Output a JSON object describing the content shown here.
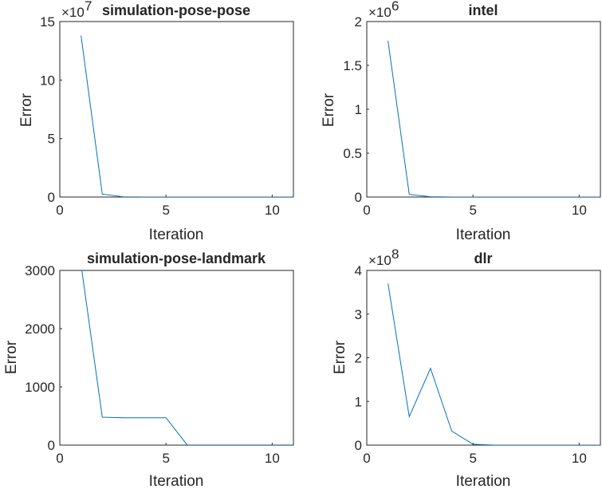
{
  "figure": {
    "background": "#ffffff",
    "line_color": "#0072BD",
    "axis_color": "#262626"
  },
  "chart_data": [
    {
      "type": "line",
      "title": "simulation-pose-pose",
      "xlabel": "Iteration",
      "ylabel": "Error",
      "xlim": [
        0,
        11
      ],
      "ylim": [
        0,
        15
      ],
      "xticks": [
        0,
        5,
        10
      ],
      "yticks": [
        0,
        5,
        10,
        15
      ],
      "ytick_labels": [
        "0",
        "5",
        "10",
        "15"
      ],
      "y_exponent": "7",
      "y_multiplier": 10000000,
      "grid": false,
      "series": [
        {
          "x": [
            1,
            2,
            3,
            4,
            5,
            6,
            7,
            8,
            9,
            10,
            11
          ],
          "values": [
            13.8,
            0.25,
            0.02,
            0,
            0,
            0,
            0,
            0,
            0,
            0,
            0
          ]
        }
      ]
    },
    {
      "type": "line",
      "title": "intel",
      "xlabel": "Iteration",
      "ylabel": "Error",
      "xlim": [
        0,
        11
      ],
      "ylim": [
        0,
        2
      ],
      "xticks": [
        0,
        5,
        10
      ],
      "yticks": [
        0,
        0.5,
        1,
        1.5,
        2
      ],
      "ytick_labels": [
        "0",
        "0.5",
        "1",
        "1.5",
        "2"
      ],
      "y_exponent": "6",
      "y_multiplier": 1000000,
      "grid": false,
      "series": [
        {
          "x": [
            1,
            2,
            3,
            4,
            5,
            6,
            7,
            8,
            9,
            10,
            11
          ],
          "values": [
            1.78,
            0.03,
            0.003,
            0,
            0,
            0,
            0,
            0,
            0,
            0,
            0
          ]
        }
      ]
    },
    {
      "type": "line",
      "title": "simulation-pose-landmark",
      "xlabel": "Iteration",
      "ylabel": "Error",
      "xlim": [
        0,
        11
      ],
      "ylim": [
        0,
        3000
      ],
      "xticks": [
        0,
        5,
        10
      ],
      "yticks": [
        0,
        1000,
        2000,
        3000
      ],
      "ytick_labels": [
        "0",
        "1000",
        "2000",
        "3000"
      ],
      "y_exponent": "",
      "y_multiplier": 1,
      "grid": false,
      "series": [
        {
          "x": [
            1,
            2,
            3,
            4,
            5,
            6,
            7,
            8,
            9,
            10,
            11
          ],
          "values": [
            3100,
            480,
            470,
            470,
            470,
            2,
            1,
            1,
            1,
            1,
            1
          ]
        }
      ]
    },
    {
      "type": "line",
      "title": "dlr",
      "xlabel": "Iteration",
      "ylabel": "Error",
      "xlim": [
        0,
        11
      ],
      "ylim": [
        0,
        4
      ],
      "xticks": [
        0,
        5,
        10
      ],
      "yticks": [
        0,
        1,
        2,
        3,
        4
      ],
      "ytick_labels": [
        "0",
        "1",
        "2",
        "3",
        "4"
      ],
      "y_exponent": "8",
      "y_multiplier": 100000000,
      "grid": false,
      "series": [
        {
          "x": [
            1,
            2,
            3,
            4,
            5,
            6,
            7,
            8,
            9,
            10,
            11
          ],
          "values": [
            3.7,
            0.65,
            1.76,
            0.32,
            0.02,
            0,
            0,
            0,
            0,
            0,
            0
          ]
        }
      ]
    }
  ]
}
